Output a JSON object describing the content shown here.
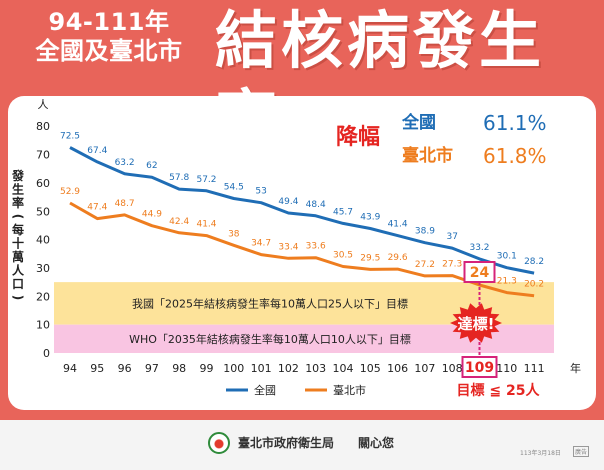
{
  "header": {
    "subtitle_line1": "94-111年",
    "subtitle_line2": "全國及臺北市",
    "title": "結核病發生率"
  },
  "colors": {
    "national": "#1f6db5",
    "taipei": "#ee7d1f",
    "target_red": "#e52521",
    "highlight_magenta": "#d6237a",
    "band_yellow": "#fde39a",
    "band_pink": "#f9c5e2"
  },
  "chart_data": {
    "type": "line",
    "title": "結核病發生率",
    "ylabel": "發生率(每十萬人口)",
    "yunit": "人",
    "xunit": "年",
    "ylim": [
      0,
      80
    ],
    "yticks": [
      0,
      10,
      20,
      30,
      40,
      50,
      60,
      70,
      80
    ],
    "categories": [
      "94",
      "95",
      "96",
      "97",
      "98",
      "99",
      "100",
      "101",
      "102",
      "103",
      "104",
      "105",
      "106",
      "107",
      "108",
      "109",
      "110",
      "111"
    ],
    "series": [
      {
        "name": "全國",
        "values": [
          72.5,
          67.4,
          63.2,
          62,
          57.8,
          57.2,
          54.5,
          53,
          49.4,
          48.4,
          45.7,
          43.9,
          41.4,
          38.9,
          37,
          33.2,
          30.1,
          28.2
        ]
      },
      {
        "name": "臺北市",
        "values": [
          52.9,
          47.4,
          48.7,
          44.9,
          42.4,
          41.4,
          38,
          34.7,
          33.4,
          33.6,
          30.5,
          29.5,
          29.6,
          27.2,
          27.3,
          24,
          21.3,
          20.2
        ]
      }
    ],
    "decline": {
      "label": "降幅",
      "items": [
        {
          "name": "全國",
          "value": "61.1%"
        },
        {
          "name": "臺北市",
          "value": "61.8%"
        }
      ]
    },
    "bands": [
      {
        "label": "我國「2025年結核病發生率每10萬人口25人以下」目標",
        "from": 0,
        "to": 25
      },
      {
        "label": "WHO「2035年結核病發生率每10萬人口10人以下」目標",
        "from": 0,
        "to": 10
      }
    ],
    "annotations": {
      "highlight_year": "109",
      "highlight_value": "24",
      "achieved": "達標!",
      "target_note": "目標 ≦ 25人"
    },
    "legend": {
      "position": "bottom-center"
    }
  },
  "footer": {
    "org": "臺北市政府衛生局",
    "slogan": "關心您",
    "date": "113年3月18日",
    "badge": "廣告"
  }
}
